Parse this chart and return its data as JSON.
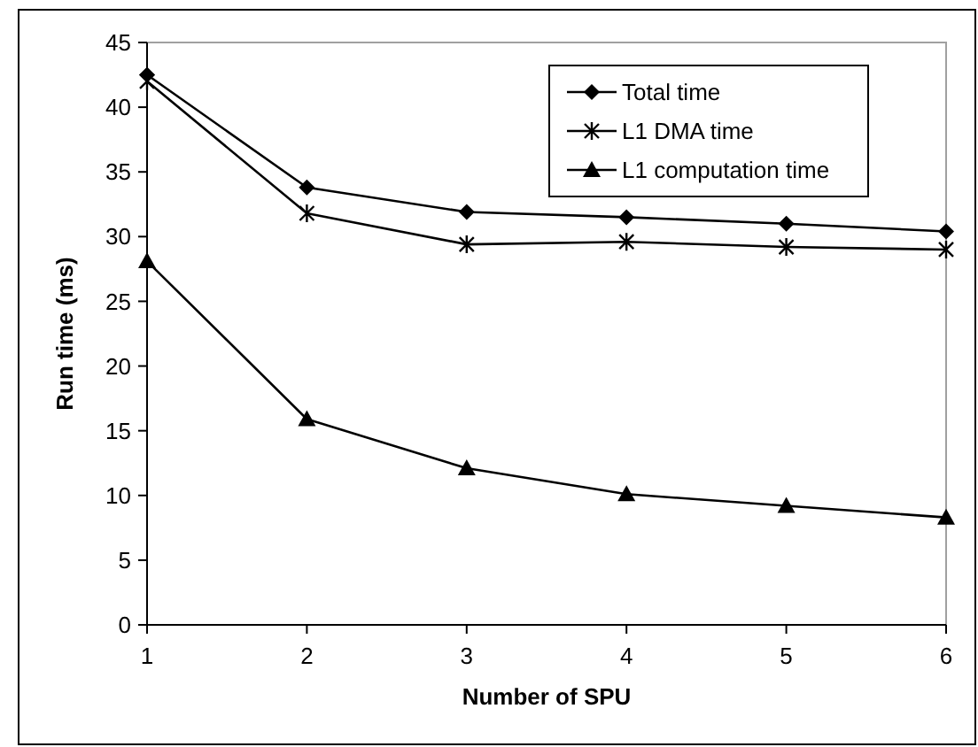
{
  "chart_data": {
    "type": "line",
    "xlabel": "Number of SPU",
    "ylabel": "Run time (ms)",
    "x": [
      1,
      2,
      3,
      4,
      5,
      6
    ],
    "xlim": [
      1,
      6
    ],
    "xticks": [
      1,
      2,
      3,
      4,
      5,
      6
    ],
    "ylim": [
      0,
      45
    ],
    "yticks": [
      0,
      5,
      10,
      15,
      20,
      25,
      30,
      35,
      40,
      45
    ],
    "grid": false,
    "legend": "top right",
    "series": [
      {
        "name": "Total time",
        "color": "#000000",
        "marker": "diamond",
        "values": [
          42.5,
          33.8,
          31.9,
          31.5,
          31.0,
          30.4
        ]
      },
      {
        "name": "L1 DMA time",
        "color": "#000000",
        "marker": "cross",
        "values": [
          42.0,
          31.8,
          29.4,
          29.6,
          29.2,
          29.0
        ]
      },
      {
        "name": "L1 computation time",
        "color": "#000000",
        "marker": "triangle",
        "values": [
          28.1,
          15.9,
          12.1,
          10.1,
          9.2,
          8.3
        ]
      }
    ]
  }
}
